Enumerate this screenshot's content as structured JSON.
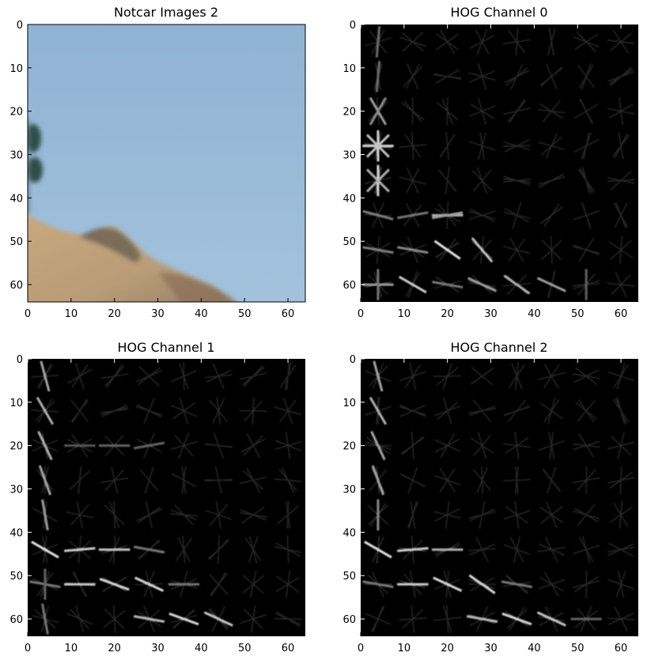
{
  "figure": {
    "panels": [
      {
        "id": "notcar",
        "title": "Notcar Images 2",
        "kind": "photo",
        "colors": {
          "sky": "#8fb3d4",
          "sky_light": "#9cbedb",
          "hill": "#c4a57c",
          "hill_dark": "#7f6a55",
          "tree": "#3b5a52"
        }
      },
      {
        "id": "hog0",
        "title": "HOG Channel 0",
        "kind": "hog"
      },
      {
        "id": "hog1",
        "title": "HOG Channel 1",
        "kind": "hog"
      },
      {
        "id": "hog2",
        "title": "HOG Channel 2",
        "kind": "hog"
      }
    ],
    "x_ticks": [
      "0",
      "10",
      "20",
      "30",
      "40",
      "50",
      "60"
    ],
    "y_ticks": [
      "0",
      "10",
      "20",
      "30",
      "40",
      "50",
      "60"
    ],
    "axis_range": [
      0,
      64
    ]
  }
}
